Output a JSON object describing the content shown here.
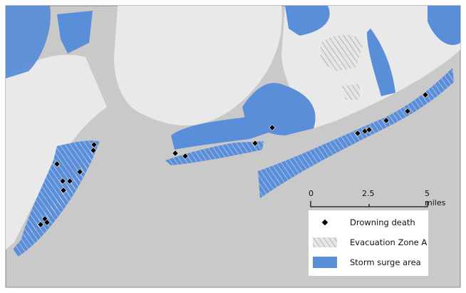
{
  "colors": {
    "water": "#c9c9c9",
    "land": "#e9e9e9",
    "storm_surge": "#5b8ed8",
    "hatch": "#8a8a8a",
    "death": "#000000"
  },
  "scale_bar": {
    "ticks": [
      "0",
      "2.5",
      "5 miles"
    ]
  },
  "legend": {
    "items": [
      {
        "label": "Drowning death",
        "icon": "diamond-marker"
      },
      {
        "label": "Evacuation Zone A",
        "icon": "diagonal-hatch"
      },
      {
        "label": "Storm surge area",
        "icon": "blue-fill"
      }
    ]
  }
}
